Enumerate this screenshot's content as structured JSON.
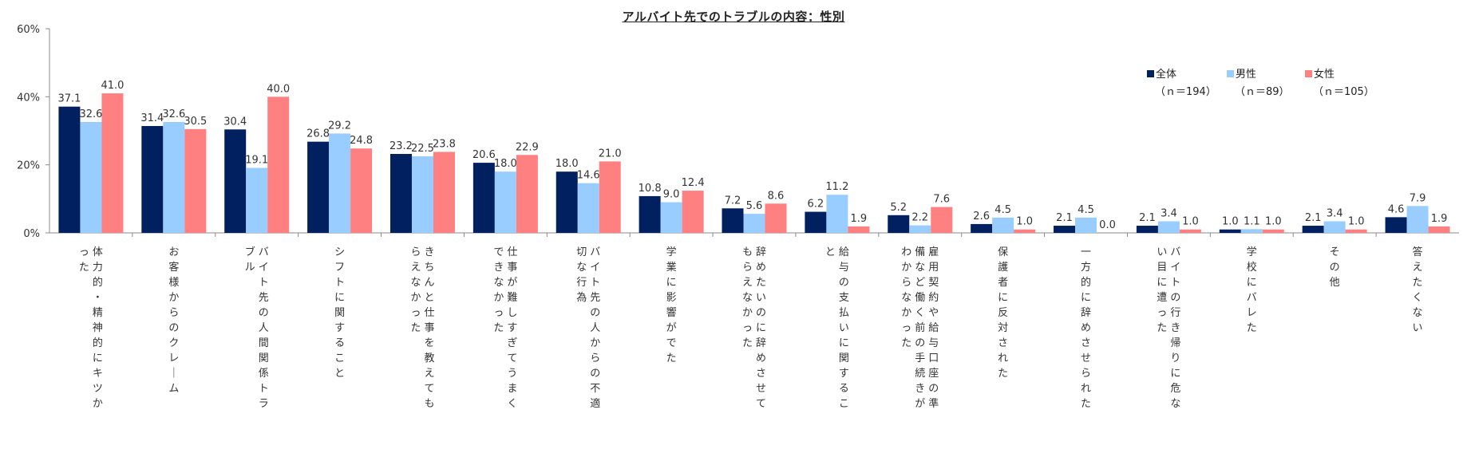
{
  "chart_data": {
    "type": "bar",
    "title": "アルバイト先でのトラブルの内容：性別",
    "xlabel": "",
    "ylabel": "",
    "ylim": [
      0,
      60
    ],
    "yticks": [
      "0%",
      "20%",
      "40%",
      "60%"
    ],
    "grid": false,
    "legend_position": "top-right",
    "categories": [
      "体力的・精神的にキツかった",
      "お客様からのクレーム",
      "バイト先の人間関係トラブル",
      "シフトに関すること",
      "きちんと仕事を教えてもらえなかった",
      "仕事が難しすぎてうまくできなかった",
      "バイト先の人からの不適切な行為",
      "学業に影響がでた",
      "辞めたいのに辞めさせてもらえなかった",
      "給与の支払いに関すること",
      "雇用契約や給与口座の準備など働く前の手続きがわからなかった",
      "保護者に反対された",
      "一方的に辞めさせられた",
      "バイトの行き帰りに危ない目に遭った",
      "学校にバレた",
      "その他",
      "答えたくない"
    ],
    "series": [
      {
        "name": "全体",
        "n_label": "（ｎ＝194）",
        "color": "#002060",
        "values": [
          37.1,
          31.4,
          30.4,
          26.8,
          23.2,
          20.6,
          18.0,
          10.8,
          7.2,
          6.2,
          5.2,
          2.6,
          2.1,
          2.1,
          1.0,
          2.1,
          4.6
        ]
      },
      {
        "name": "男性",
        "n_label": "（ｎ＝89）",
        "color": "#99CCFF",
        "values": [
          32.6,
          32.6,
          19.1,
          29.2,
          22.5,
          18.0,
          14.6,
          9.0,
          5.6,
          11.2,
          2.2,
          4.5,
          4.5,
          3.4,
          1.1,
          3.4,
          7.9
        ]
      },
      {
        "name": "女性",
        "n_label": "（ｎ＝105）",
        "color": "#FF8080",
        "values": [
          41.0,
          30.5,
          40.0,
          24.8,
          23.8,
          22.9,
          21.0,
          12.4,
          8.6,
          1.9,
          7.6,
          1.0,
          0.0,
          1.0,
          1.0,
          1.0,
          1.9
        ]
      }
    ]
  }
}
